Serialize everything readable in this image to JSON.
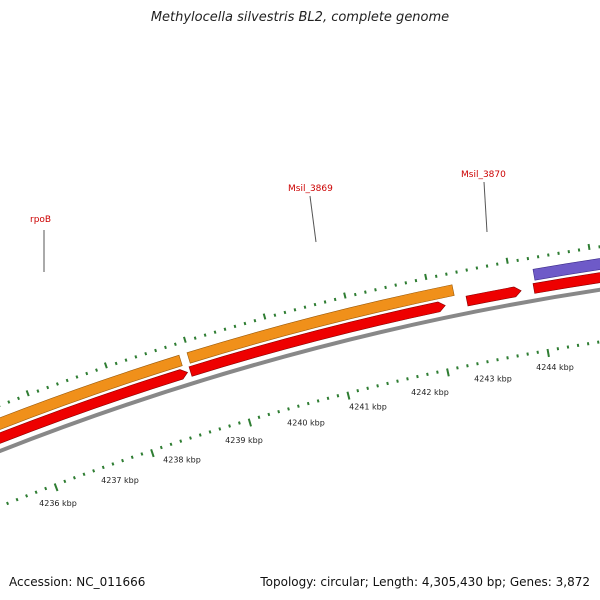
{
  "title": "Methylocella silvestris BL2, complete genome",
  "footer": {
    "accession": "Accession: NC_011666",
    "info": "Topology: circular; Length: 4,305,430 bp; Genes: 3,872"
  },
  "colors": {
    "backbone": "#888888",
    "forward_cds": "#f0901a",
    "reverse_cds": "#ee0000",
    "rna": "#6e5ac8",
    "ticks": "#2e7d32",
    "label": "#cc0000"
  },
  "scale_labels": [
    "4236 kbp",
    "4237 kbp",
    "4238 kbp",
    "4239 kbp",
    "4240 kbp",
    "4241 kbp",
    "4242 kbp",
    "4243 kbp",
    "4244 kbp"
  ],
  "gene_labels": [
    "rpoB",
    "Msil_3869",
    "Msil_3870"
  ]
}
